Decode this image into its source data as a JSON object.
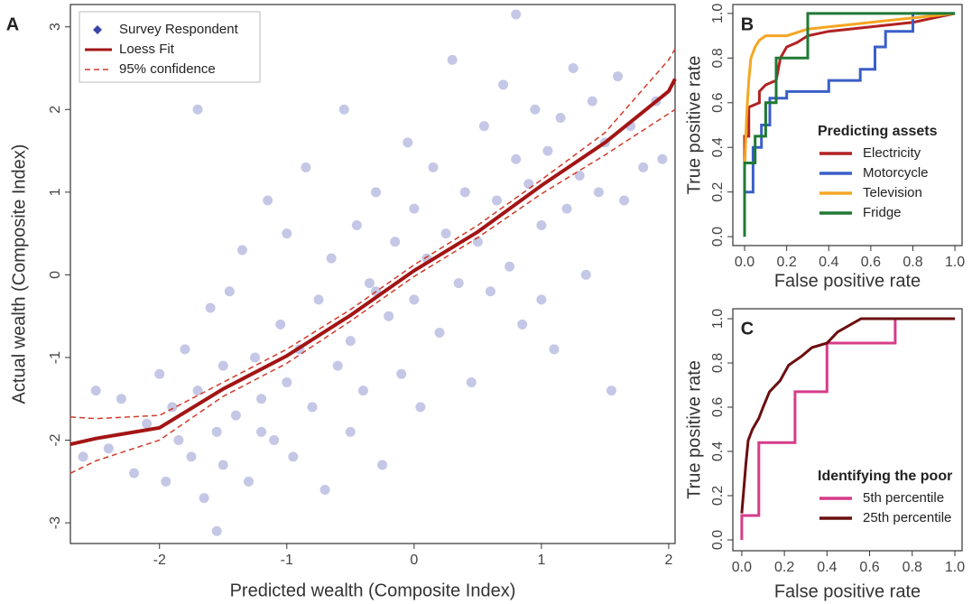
{
  "chart_data": [
    {
      "type": "scatter",
      "label": "A",
      "xlabel": "Predicted wealth (Composite Index)",
      "ylabel": "Actual wealth (Composite Index)",
      "xlim": [
        -2.7,
        2.05
      ],
      "ylim": [
        -3.25,
        3.27
      ],
      "xticks": [
        -2,
        -1,
        0,
        1,
        2
      ],
      "yticks": [
        -3,
        -2,
        -1,
        0,
        1,
        2,
        3
      ],
      "legend": "upper left",
      "series": [
        {
          "name": "Survey Respondent",
          "style": "points",
          "color": "#3b44a8",
          "alpha": 0.3,
          "x": [
            -2.4,
            -2.3,
            -2.2,
            -2.1,
            -2.0,
            -1.95,
            -1.9,
            -1.85,
            -1.8,
            -1.75,
            -1.7,
            -1.7,
            -1.65,
            -1.6,
            -1.55,
            -1.5,
            -1.5,
            -1.45,
            -1.4,
            -1.35,
            -1.3,
            -1.25,
            -1.2,
            -1.15,
            -1.1,
            -1.05,
            -1.0,
            -1.0,
            -0.95,
            -0.9,
            -0.85,
            -0.8,
            -0.75,
            -0.7,
            -0.65,
            -0.6,
            -0.55,
            -0.5,
            -0.5,
            -0.45,
            -0.4,
            -0.35,
            -0.3,
            -0.25,
            -0.2,
            -0.15,
            -0.1,
            -0.05,
            0.0,
            0.0,
            0.05,
            0.1,
            0.15,
            0.2,
            0.25,
            0.3,
            0.35,
            0.4,
            0.45,
            0.5,
            0.55,
            0.6,
            0.65,
            0.7,
            0.75,
            0.8,
            0.85,
            0.9,
            0.95,
            1.0,
            1.05,
            1.1,
            1.15,
            1.2,
            1.25,
            1.3,
            1.35,
            1.4,
            1.45,
            1.5,
            1.55,
            1.6,
            1.65,
            1.7,
            1.8,
            1.9,
            1.95,
            -2.6,
            -2.5,
            0.8,
            -1.55,
            1.0,
            -0.3,
            -1.2
          ],
          "values": [
            -2.1,
            -1.5,
            -2.4,
            -1.8,
            -1.2,
            -2.5,
            -1.6,
            -2.0,
            -0.9,
            -2.2,
            2.0,
            -1.4,
            -2.7,
            -0.4,
            -1.9,
            -1.1,
            -2.3,
            -0.2,
            -1.7,
            0.3,
            -2.5,
            -1.0,
            -1.5,
            0.9,
            -2.0,
            -0.6,
            -1.3,
            0.5,
            -2.2,
            -0.9,
            1.3,
            -1.6,
            -0.3,
            -2.6,
            0.2,
            -1.1,
            2.0,
            -0.8,
            -1.9,
            0.6,
            -1.4,
            -0.1,
            1.0,
            -2.3,
            -0.5,
            0.4,
            -1.2,
            1.6,
            -0.3,
            0.8,
            -1.6,
            0.2,
            1.3,
            -0.7,
            0.5,
            2.6,
            -0.1,
            1.0,
            -1.3,
            0.4,
            1.8,
            -0.2,
            0.9,
            2.3,
            0.1,
            1.4,
            -0.6,
            1.1,
            2.0,
            0.6,
            1.5,
            -0.9,
            1.9,
            0.8,
            2.5,
            1.2,
            0.0,
            2.1,
            1.0,
            1.6,
            -1.4,
            2.4,
            0.9,
            1.8,
            1.3,
            2.1,
            1.4,
            -2.2,
            -1.4,
            3.15,
            -3.1,
            -0.3,
            -0.2,
            -1.9
          ]
        },
        {
          "name": "Loess Fit",
          "style": "solid",
          "color": "#a31515",
          "x": [
            -2.7,
            -2.5,
            -2,
            -1.5,
            -1,
            -0.5,
            0,
            0.5,
            1,
            1.5,
            2,
            2.05
          ],
          "values": [
            -2.05,
            -1.98,
            -1.85,
            -1.38,
            -0.98,
            -0.49,
            0.05,
            0.52,
            1.08,
            1.6,
            2.22,
            2.37
          ]
        },
        {
          "name": "95% confidence",
          "style": "dashed",
          "color": "#d03a2a",
          "x": [
            -2.7,
            -2.5,
            -2,
            -1.5,
            -1,
            -0.5,
            0,
            0.5,
            1,
            1.5,
            2,
            2.05
          ],
          "values": [
            -1.72,
            -1.74,
            -1.7,
            -1.3,
            -0.9,
            -0.42,
            0.12,
            0.6,
            1.15,
            1.72,
            2.6,
            2.73
          ],
          "lower": [
            -2.4,
            -2.25,
            -2.0,
            -1.47,
            -1.07,
            -0.56,
            -0.02,
            0.45,
            0.98,
            1.45,
            1.95,
            2.0
          ]
        }
      ]
    },
    {
      "type": "line",
      "label": "B",
      "xlabel": "False positive rate",
      "ylabel": "True positive rate",
      "xlim": [
        -0.056,
        1.034
      ],
      "ylim": [
        -0.04,
        1.04
      ],
      "xticks": [
        {
          "value": 0,
          "label": "0.0"
        },
        0.2,
        0.4,
        0.6,
        0.8,
        {
          "value": 1,
          "label": "1.0"
        }
      ],
      "yticks": [
        {
          "value": 0,
          "label": "0.0"
        },
        0.2,
        0.4,
        0.6,
        0.8,
        {
          "value": 1,
          "label": "1.0"
        }
      ],
      "legend": "lower right",
      "legend_title": "Predicting assets",
      "series": [
        {
          "name": "Electricity",
          "style": "solid",
          "color": "#b22222",
          "x": [
            0,
            0,
            0.02,
            0.02,
            0.07,
            0.07,
            0.1,
            0.15,
            0.17,
            0.2,
            0.25,
            0.3,
            0.4,
            0.5,
            0.6,
            0.7,
            0.8,
            0.9,
            1.0
          ],
          "values": [
            0,
            0.45,
            0.45,
            0.58,
            0.6,
            0.65,
            0.68,
            0.7,
            0.8,
            0.85,
            0.87,
            0.9,
            0.92,
            0.93,
            0.94,
            0.95,
            0.96,
            0.98,
            1.0
          ]
        },
        {
          "name": "Motorcycle",
          "style": "solid",
          "color": "#3a5fc8",
          "x": [
            0,
            0,
            0.04,
            0.04,
            0.08,
            0.08,
            0.12,
            0.12,
            0.2,
            0.2,
            0.4,
            0.4,
            0.55,
            0.55,
            0.62,
            0.62,
            0.67,
            0.67,
            0.8,
            0.8,
            1.0
          ],
          "values": [
            0,
            0.2,
            0.2,
            0.4,
            0.4,
            0.5,
            0.5,
            0.62,
            0.62,
            0.65,
            0.65,
            0.7,
            0.7,
            0.75,
            0.75,
            0.85,
            0.85,
            0.92,
            0.92,
            1.0,
            1.0
          ]
        },
        {
          "name": "Television",
          "style": "solid",
          "color": "#f5a623",
          "x": [
            0,
            0.01,
            0.02,
            0.03,
            0.05,
            0.07,
            0.1,
            0.15,
            0.2,
            0.3,
            0.5,
            0.7,
            1.0
          ],
          "values": [
            0.3,
            0.55,
            0.7,
            0.8,
            0.85,
            0.88,
            0.9,
            0.9,
            0.9,
            0.93,
            0.95,
            0.97,
            1.0
          ]
        },
        {
          "name": "Fridge",
          "style": "solid",
          "color": "#1f7a34",
          "x": [
            0,
            0,
            0.05,
            0.05,
            0.1,
            0.1,
            0.15,
            0.15,
            0.3,
            0.3,
            1.0
          ],
          "values": [
            0,
            0.33,
            0.33,
            0.45,
            0.45,
            0.6,
            0.6,
            0.8,
            0.8,
            1.0,
            1.0
          ]
        }
      ]
    },
    {
      "type": "line",
      "label": "C",
      "xlabel": "False positive rate",
      "ylabel": "True positive rate",
      "xlim": [
        -0.042,
        1.034
      ],
      "ylim": [
        -0.049,
        1.045
      ],
      "xticks": [
        {
          "value": 0,
          "label": "0.0"
        },
        0.2,
        0.4,
        0.6,
        0.8,
        {
          "value": 1,
          "label": "1.0"
        }
      ],
      "yticks": [
        {
          "value": 0,
          "label": "0.0"
        },
        0.2,
        0.4,
        0.6,
        0.8,
        {
          "value": 1,
          "label": "1.0"
        }
      ],
      "legend": "lower right",
      "legend_title": "Identifying the poor",
      "series": [
        {
          "name": "5th percentile",
          "style": "solid",
          "color": "#d63c8a",
          "x": [
            0,
            0,
            0.08,
            0.08,
            0.25,
            0.25,
            0.4,
            0.4,
            0.72,
            0.72,
            1.0
          ],
          "values": [
            0,
            0.11,
            0.11,
            0.44,
            0.44,
            0.67,
            0.67,
            0.89,
            0.89,
            1.0,
            1.0
          ]
        },
        {
          "name": "25th percentile",
          "style": "solid",
          "color": "#6b0f0f",
          "x": [
            0,
            0.02,
            0.03,
            0.05,
            0.08,
            0.1,
            0.13,
            0.18,
            0.22,
            0.28,
            0.33,
            0.4,
            0.45,
            0.56,
            0.6,
            1.0
          ],
          "values": [
            0.12,
            0.35,
            0.45,
            0.5,
            0.55,
            0.6,
            0.67,
            0.72,
            0.79,
            0.83,
            0.87,
            0.89,
            0.94,
            1.0,
            1.0,
            1.0
          ]
        }
      ]
    }
  ]
}
